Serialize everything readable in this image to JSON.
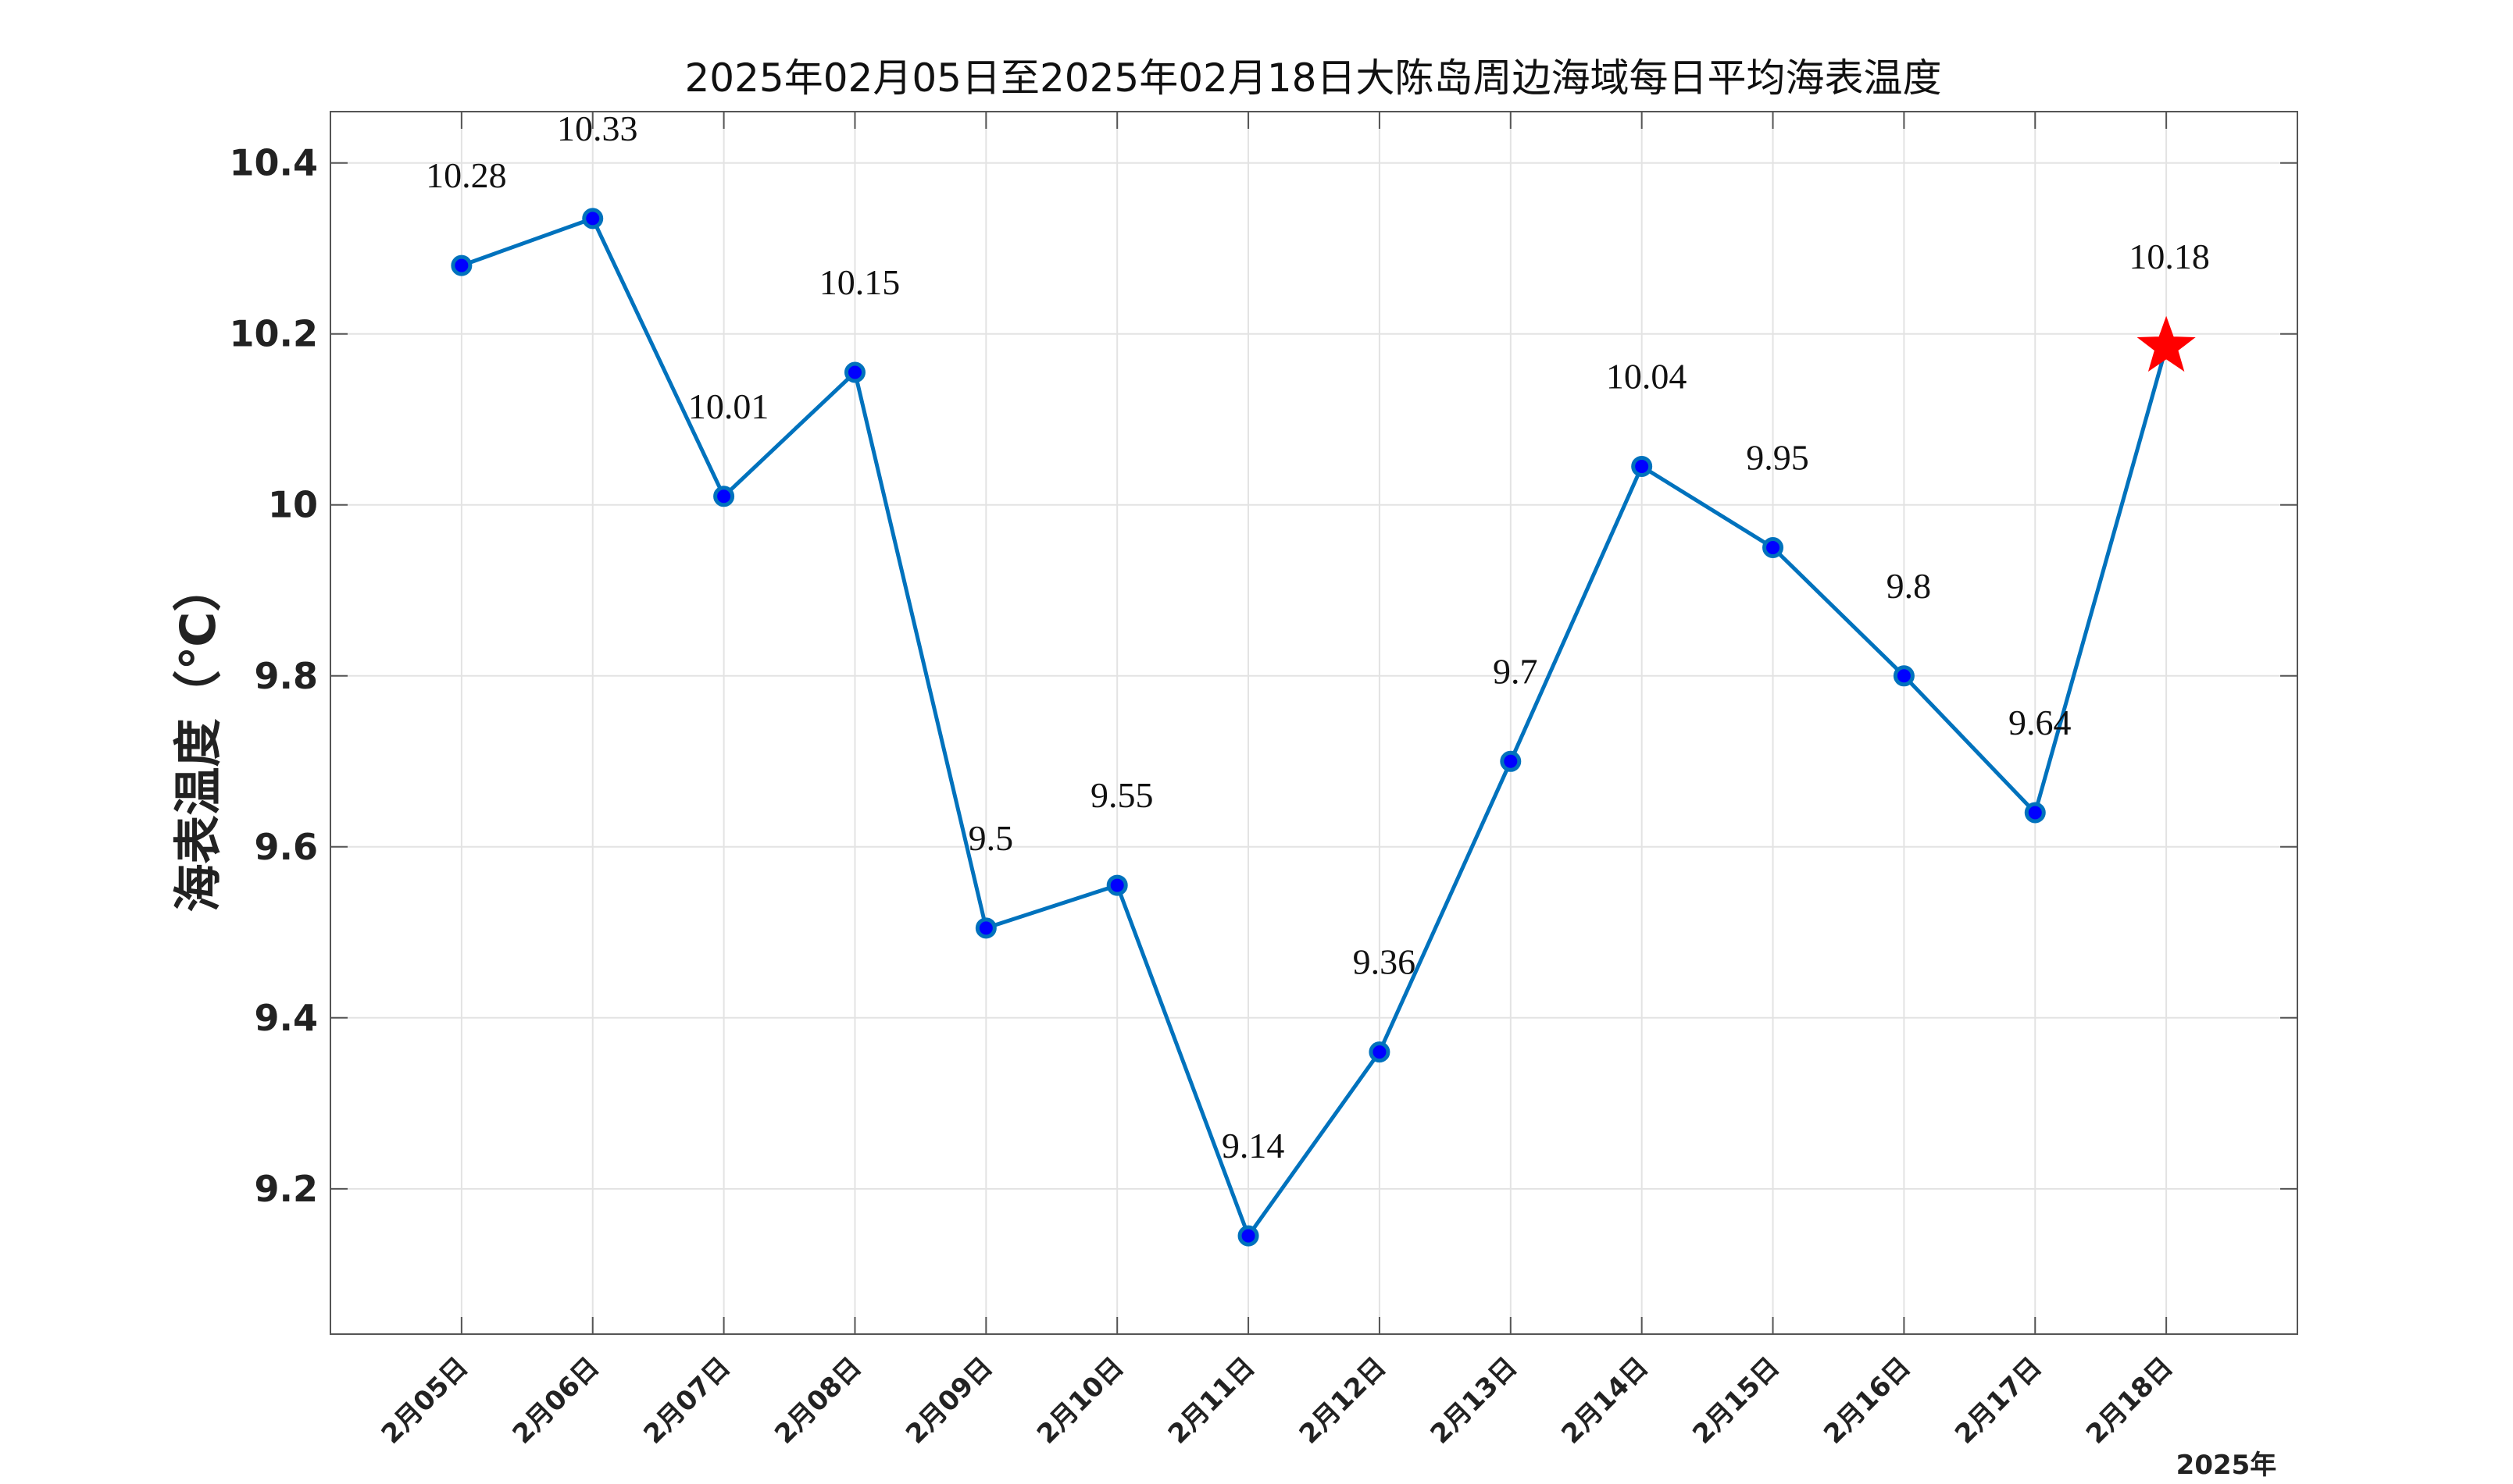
{
  "chart_data": {
    "type": "line",
    "title": "2025年02月05日至2025年02月18日大陈岛周边海域每日平均海表温度",
    "ylabel": "海表温度（℃）",
    "xlabel": "",
    "x_axis_footer": "2025年",
    "categories": [
      "2月05日",
      "2月06日",
      "2月07日",
      "2月08日",
      "2月09日",
      "2月10日",
      "2月11日",
      "2月12日",
      "2月13日",
      "2月14日",
      "2月15日",
      "2月16日",
      "2月17日",
      "2月18日"
    ],
    "values": [
      10.28,
      10.335,
      10.01,
      10.155,
      9.505,
      9.555,
      9.145,
      9.36,
      9.7,
      10.045,
      9.95,
      9.8,
      9.64,
      10.185
    ],
    "data_labels": [
      "10.28",
      "10.33",
      "10.01",
      "10.15",
      "9.5",
      "9.55",
      "9.14",
      "9.36",
      "9.7",
      "10.04",
      "9.95",
      "9.8",
      "9.64",
      "10.18"
    ],
    "ylim": [
      9.03,
      10.46
    ],
    "yticks": [
      9.2,
      9.4,
      9.6,
      9.8,
      10,
      10.2,
      10.4
    ],
    "ytick_labels": [
      "9.2",
      "9.4",
      "9.6",
      "9.8",
      "10",
      "10.2",
      "10.4"
    ],
    "grid": true,
    "highlight": {
      "index": 13,
      "marker": "star",
      "color": "#ff0000"
    },
    "colors": {
      "line": "#0072bd",
      "marker_fill": "#0000ff",
      "marker_edge": "#0072bd",
      "grid": "#e3e3e3",
      "axes": "#555555"
    }
  }
}
